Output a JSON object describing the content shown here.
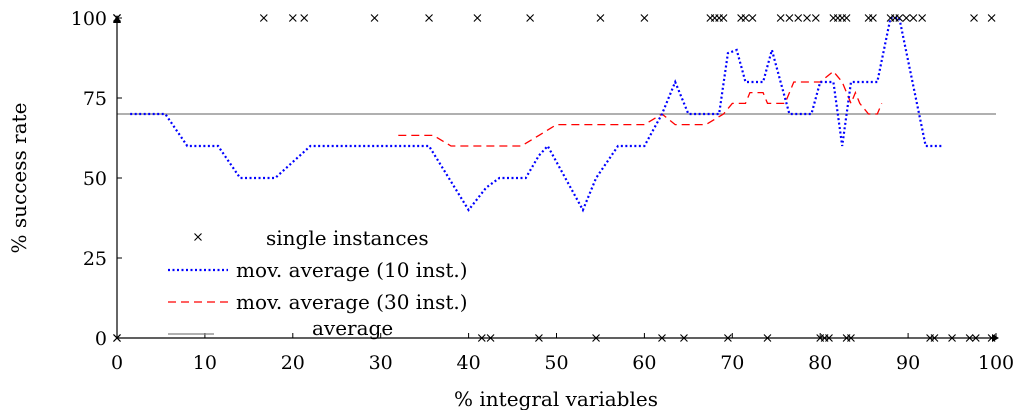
{
  "chart_data": {
    "type": "scatter",
    "xlabel": "% integral variables",
    "ylabel": "% success rate",
    "xlim": [
      0,
      100
    ],
    "ylim": [
      0,
      100
    ],
    "x_ticks": [
      0,
      10,
      20,
      30,
      40,
      50,
      60,
      70,
      80,
      90,
      100
    ],
    "y_ticks": [
      0,
      25,
      50,
      75,
      100
    ],
    "legend_position": "center-left",
    "series": [
      {
        "name": "single instances",
        "kind": "markers",
        "marker": "x",
        "color": "#000000",
        "points": [
          [
            0,
            100
          ],
          [
            0,
            100
          ],
          [
            0,
            100
          ],
          [
            0,
            0
          ],
          [
            0,
            0
          ],
          [
            16.7,
            100
          ],
          [
            20,
            100
          ],
          [
            21.3,
            100
          ],
          [
            29.3,
            100
          ],
          [
            35.5,
            100
          ],
          [
            41,
            100
          ],
          [
            47,
            100
          ],
          [
            55,
            100
          ],
          [
            60,
            100
          ],
          [
            67.5,
            100
          ],
          [
            68,
            100
          ],
          [
            68.5,
            100
          ],
          [
            69,
            100
          ],
          [
            71,
            100
          ],
          [
            71.5,
            100
          ],
          [
            72.3,
            100
          ],
          [
            75.5,
            100
          ],
          [
            76.5,
            100
          ],
          [
            77.5,
            100
          ],
          [
            78.5,
            100
          ],
          [
            79.5,
            100
          ],
          [
            81.5,
            100
          ],
          [
            82,
            100
          ],
          [
            82.5,
            100
          ],
          [
            83,
            100
          ],
          [
            85.5,
            100
          ],
          [
            86,
            100
          ],
          [
            88,
            100
          ],
          [
            88.5,
            100
          ],
          [
            89,
            100
          ],
          [
            89.8,
            100
          ],
          [
            90.6,
            100
          ],
          [
            91.6,
            100
          ],
          [
            97.5,
            100
          ],
          [
            99.5,
            100
          ],
          [
            41.5,
            0
          ],
          [
            42.5,
            0
          ],
          [
            48,
            0
          ],
          [
            54.5,
            0
          ],
          [
            62,
            0
          ],
          [
            64.5,
            0
          ],
          [
            69.5,
            0
          ],
          [
            74,
            0
          ],
          [
            80,
            0
          ],
          [
            80.5,
            0
          ],
          [
            81,
            0
          ],
          [
            83,
            0
          ],
          [
            83.5,
            0
          ],
          [
            92.5,
            0
          ],
          [
            93,
            0
          ],
          [
            95,
            0
          ],
          [
            97,
            0
          ],
          [
            97.7,
            0
          ],
          [
            99.5,
            0
          ]
        ]
      },
      {
        "name": "mov. average (10 inst.)",
        "kind": "line",
        "color": "#0000ff",
        "dash": "dotted",
        "points": [
          [
            1.5,
            70
          ],
          [
            5.5,
            70
          ],
          [
            8,
            60
          ],
          [
            11.5,
            60
          ],
          [
            14,
            50
          ],
          [
            18,
            50
          ],
          [
            22,
            60
          ],
          [
            33,
            60
          ],
          [
            33.5,
            60
          ],
          [
            35.5,
            60
          ],
          [
            40,
            40
          ],
          [
            42,
            47
          ],
          [
            43.5,
            50
          ],
          [
            46.5,
            50
          ],
          [
            48,
            57
          ],
          [
            49,
            60
          ],
          [
            53,
            40
          ],
          [
            54.5,
            50
          ],
          [
            57,
            60
          ],
          [
            60,
            60
          ],
          [
            62,
            70
          ],
          [
            63.5,
            80
          ],
          [
            65,
            70
          ],
          [
            67,
            70
          ],
          [
            68.5,
            70
          ],
          [
            69.5,
            89
          ],
          [
            70.5,
            90
          ],
          [
            71.5,
            80
          ],
          [
            73.5,
            80
          ],
          [
            74.5,
            90
          ],
          [
            75.5,
            80
          ],
          [
            76.5,
            70
          ],
          [
            79,
            70
          ],
          [
            80,
            80
          ],
          [
            81.5,
            80
          ],
          [
            82,
            70
          ],
          [
            82.5,
            60
          ],
          [
            83.5,
            80
          ],
          [
            86.5,
            80
          ],
          [
            88,
            100
          ],
          [
            89,
            100
          ],
          [
            90.5,
            80
          ],
          [
            92,
            60
          ],
          [
            94,
            60
          ]
        ]
      },
      {
        "name": "mov. average (30 inst.)",
        "kind": "line",
        "color": "#ff0000",
        "dash": "dashed",
        "points": [
          [
            32,
            63.3
          ],
          [
            36,
            63.3
          ],
          [
            38,
            60
          ],
          [
            46,
            60
          ],
          [
            48,
            63.3
          ],
          [
            50,
            66.7
          ],
          [
            60,
            66.7
          ],
          [
            62,
            70
          ],
          [
            63.5,
            66.7
          ],
          [
            67,
            66.7
          ],
          [
            69,
            70
          ],
          [
            70,
            73.3
          ],
          [
            71.5,
            73.3
          ],
          [
            72,
            76.7
          ],
          [
            73.5,
            76.7
          ],
          [
            74,
            73.3
          ],
          [
            76,
            73.3
          ],
          [
            77,
            80
          ],
          [
            80,
            80
          ],
          [
            81.5,
            83.3
          ],
          [
            82.5,
            80
          ],
          [
            83.5,
            73.3
          ],
          [
            84,
            76.7
          ],
          [
            84.5,
            73.3
          ],
          [
            85.5,
            70
          ],
          [
            86.5,
            70
          ],
          [
            87,
            73.3
          ]
        ]
      },
      {
        "name": "average",
        "kind": "hline",
        "color": "#808080",
        "dash": "solid",
        "value": 70
      }
    ]
  }
}
